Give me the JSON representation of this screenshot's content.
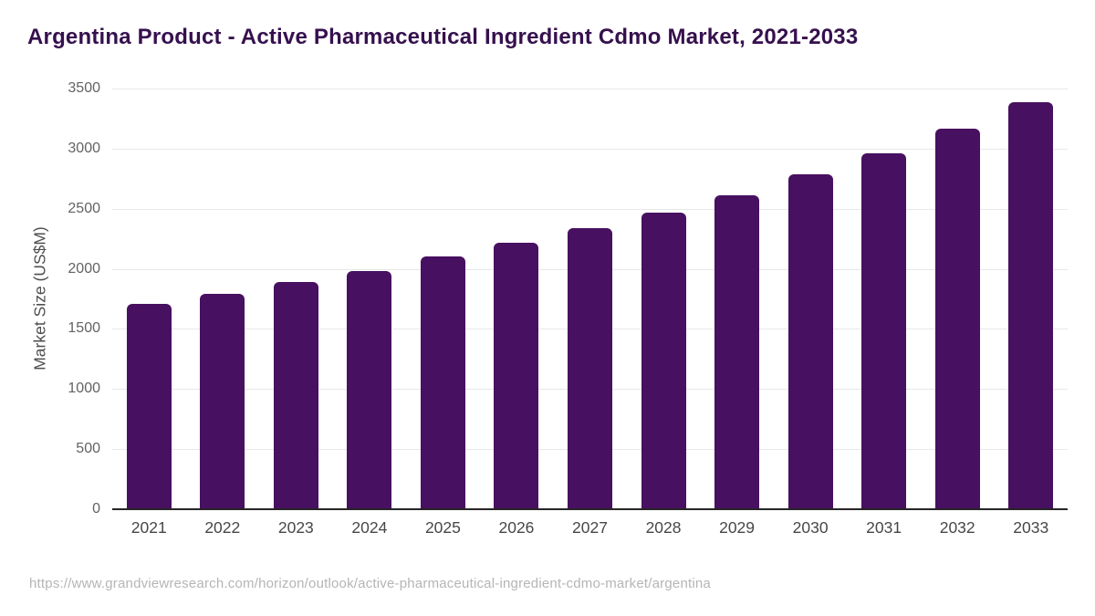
{
  "header": {
    "title": "Argentina Product - Active Pharmaceutical Ingredient Cdmo Market, 2021-2033"
  },
  "chart_data": {
    "type": "bar",
    "title": "Argentina Product - Active Pharmaceutical Ingredient Cdmo Market, 2021-2033",
    "categories": [
      "2021",
      "2022",
      "2023",
      "2024",
      "2025",
      "2026",
      "2027",
      "2028",
      "2029",
      "2030",
      "2031",
      "2032",
      "2033"
    ],
    "values": [
      1710,
      1795,
      1890,
      1985,
      2100,
      2215,
      2335,
      2470,
      2615,
      2785,
      2960,
      3165,
      3390
    ],
    "xlabel": "",
    "ylabel": "Market Size (US$M)",
    "ylim": [
      0,
      3500
    ],
    "ytick_step": 500,
    "yticks": [
      "0",
      "500",
      "1000",
      "1500",
      "2000",
      "2500",
      "3000",
      "3500"
    ],
    "grid": "horizontal",
    "legend": "none",
    "bar_color": "#481060"
  },
  "footer": {
    "source_url": "https://www.grandviewresearch.com/horizon/outlook/active-pharmaceutical-ingredient-cdmo-market/argentina"
  },
  "colors": {
    "title_text": "#36104e",
    "bar_fill": "#481060",
    "grid_line": "#e8e8e8",
    "axis_line": "#262626",
    "ytick_text": "#636363",
    "xtick_text": "#474747",
    "footer_text": "#b5b5b5",
    "background": "#ffffff"
  }
}
